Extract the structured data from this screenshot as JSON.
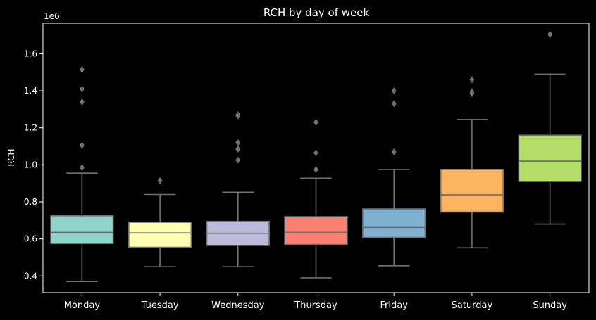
{
  "chart_data": {
    "type": "box",
    "title": "RCH by day of week",
    "xlabel": "",
    "ylabel": "RCH",
    "y_scale_label": "1e6",
    "ylim": [
      0.31,
      1.765
    ],
    "yticks": [
      0.4,
      0.6,
      0.8,
      1.0,
      1.2,
      1.4,
      1.6
    ],
    "ytick_labels": [
      "0.4",
      "0.6",
      "0.8",
      "1.0",
      "1.2",
      "1.4",
      "1.6"
    ],
    "grid": false,
    "legend": "none",
    "categories": [
      "Monday",
      "Tuesday",
      "Wednesday",
      "Thursday",
      "Friday",
      "Saturday",
      "Sunday"
    ],
    "boxes": [
      {
        "category": "Monday",
        "whisker_low": 0.37,
        "q1": 0.575,
        "median": 0.635,
        "q3": 0.725,
        "whisker_high": 0.955,
        "outliers": [
          0.985,
          1.105,
          1.34,
          1.41,
          1.515
        ],
        "color": "#8dd3c7"
      },
      {
        "category": "Tuesday",
        "whisker_low": 0.45,
        "q1": 0.555,
        "median": 0.632,
        "q3": 0.69,
        "whisker_high": 0.84,
        "outliers": [
          0.915
        ],
        "color": "#ffffb3"
      },
      {
        "category": "Wednesday",
        "whisker_low": 0.45,
        "q1": 0.565,
        "median": 0.63,
        "q3": 0.695,
        "whisker_high": 0.852,
        "outliers": [
          1.025,
          1.085,
          1.12,
          1.265,
          1.27
        ],
        "color": "#bebada"
      },
      {
        "category": "Thursday",
        "whisker_low": 0.39,
        "q1": 0.57,
        "median": 0.635,
        "q3": 0.72,
        "whisker_high": 0.928,
        "outliers": [
          0.975,
          1.065,
          1.23
        ],
        "color": "#fb8072"
      },
      {
        "category": "Friday",
        "whisker_low": 0.455,
        "q1": 0.608,
        "median": 0.662,
        "q3": 0.762,
        "whisker_high": 0.975,
        "outliers": [
          1.07,
          1.33,
          1.4
        ],
        "color": "#80b1d3"
      },
      {
        "category": "Saturday",
        "whisker_low": 0.552,
        "q1": 0.745,
        "median": 0.838,
        "q3": 0.975,
        "whisker_high": 1.245,
        "outliers": [
          1.385,
          1.395,
          1.46
        ],
        "color": "#fdb462"
      },
      {
        "category": "Sunday",
        "whisker_low": 0.68,
        "q1": 0.91,
        "median": 1.02,
        "q3": 1.16,
        "whisker_high": 1.49,
        "outliers": [
          1.705
        ],
        "color": "#b3de69"
      }
    ],
    "box_line_color": "#707070",
    "outlier_color": "#707070"
  }
}
